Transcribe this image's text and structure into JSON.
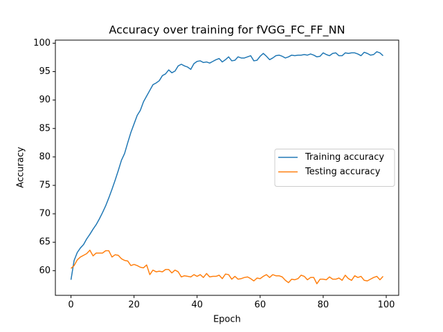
{
  "chart_data": {
    "type": "line",
    "title": "Accuracy over training for fVGG_FC_FF_NN",
    "x_label": "Epoch",
    "y_label": "Accuracy",
    "x": [
      0,
      1,
      2,
      3,
      4,
      5,
      6,
      7,
      8,
      9,
      10,
      11,
      12,
      13,
      14,
      15,
      16,
      17,
      18,
      19,
      20,
      21,
      22,
      23,
      24,
      25,
      26,
      27,
      28,
      29,
      30,
      31,
      32,
      33,
      34,
      35,
      36,
      37,
      38,
      39,
      40,
      41,
      42,
      43,
      44,
      45,
      46,
      47,
      48,
      49,
      50,
      51,
      52,
      53,
      54,
      55,
      56,
      57,
      58,
      59,
      60,
      61,
      62,
      63,
      64,
      65,
      66,
      67,
      68,
      69,
      70,
      71,
      72,
      73,
      74,
      75,
      76,
      77,
      78,
      79,
      80,
      81,
      82,
      83,
      84,
      85,
      86,
      87,
      88,
      89,
      90,
      91,
      92,
      93,
      94,
      95,
      96,
      97,
      98,
      99
    ],
    "series": [
      {
        "name": "Training accuracy",
        "color": "#1f77b4",
        "values": [
          58.4,
          61.8,
          63.2,
          64,
          64.6,
          65.6,
          66.4,
          67.3,
          68.1,
          69.1,
          70.2,
          71.4,
          72.8,
          74.3,
          75.9,
          77.6,
          79.4,
          80.6,
          82.5,
          84.3,
          85.8,
          87.3,
          88.2,
          89.7,
          90.7,
          91.7,
          92.7,
          93,
          93.4,
          94.3,
          94.6,
          95.3,
          94.8,
          95.1,
          96,
          96.3,
          96,
          95.8,
          95.4,
          96.4,
          96.8,
          96.9,
          96.6,
          96.7,
          96.5,
          96.8,
          97.1,
          97.3,
          96.7,
          97.1,
          97.6,
          96.9,
          97,
          97.6,
          97.4,
          97.4,
          97.6,
          97.8,
          96.9,
          97,
          97.7,
          98.2,
          97.7,
          97.1,
          97.4,
          97.8,
          97.9,
          97.7,
          97.4,
          97.6,
          97.9,
          97.8,
          97.9,
          97.9,
          98,
          97.9,
          98.1,
          97.9,
          97.6,
          97.7,
          98.3,
          98,
          97.8,
          98.2,
          98.3,
          97.8,
          97.8,
          98.3,
          98.2,
          98.3,
          98.3,
          98.1,
          97.8,
          98.4,
          98.2,
          97.9,
          98,
          98.5,
          98.3,
          97.8
        ]
      },
      {
        "name": "Testing accuracy",
        "color": "#ff7f0e",
        "values": [
          60.4,
          60.9,
          61.9,
          62.4,
          62.7,
          63,
          63.6,
          62.6,
          63.1,
          63.1,
          63.1,
          63.5,
          63.5,
          62.4,
          62.8,
          62.7,
          62.1,
          61.8,
          61.7,
          60.9,
          61.1,
          60.9,
          60.6,
          60.5,
          61,
          59.3,
          60.1,
          59.8,
          59.9,
          59.8,
          60.2,
          60.2,
          59.6,
          60.1,
          59.8,
          58.9,
          59.1,
          59,
          58.9,
          59.3,
          59,
          59.3,
          58.8,
          59.5,
          58.9,
          59,
          59,
          59.2,
          58.6,
          59.4,
          59.3,
          58.5,
          59,
          58.5,
          58.6,
          58.8,
          58.9,
          58.6,
          58.2,
          58.7,
          58.6,
          59,
          59.3,
          58.8,
          59.3,
          59.1,
          59.1,
          58.9,
          58.3,
          57.9,
          58.5,
          58.4,
          58.6,
          59.2,
          59,
          58.4,
          58.8,
          58.8,
          57.7,
          58.5,
          58.5,
          58.4,
          58.9,
          58.5,
          58.5,
          58.7,
          58.3,
          59.2,
          58.6,
          58.3,
          59.1,
          58.8,
          59,
          58.3,
          58.2,
          58.5,
          58.8,
          59,
          58.4,
          59
        ]
      }
    ],
    "xlim": [
      -4.95,
      103.95
    ],
    "xticks": [
      0,
      20,
      40,
      60,
      80,
      100
    ],
    "ylim": [
      55.66,
      100.54
    ],
    "yticks": [
      60,
      65,
      70,
      75,
      80,
      85,
      90,
      95,
      100
    ],
    "legend": "center right",
    "grid": false
  }
}
